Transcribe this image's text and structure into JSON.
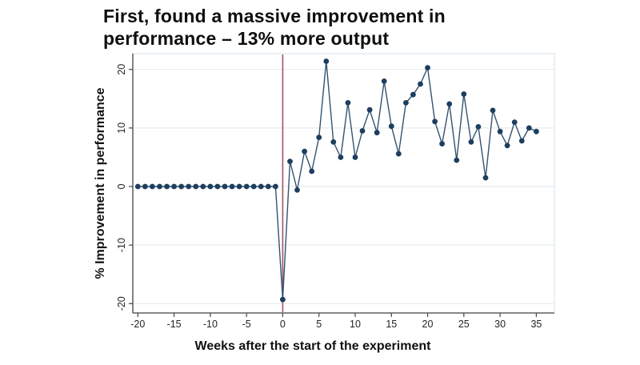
{
  "slide": {
    "title": "First, found a massive improvement in\nperformance – 13% more output"
  },
  "chart_data": {
    "type": "line",
    "title": "First, found a massive improvement in performance – 13% more output",
    "xlabel": "Weeks after the start of the experiment",
    "ylabel": "% Improvement in performance",
    "x_ticks": [
      -20,
      -15,
      -10,
      -5,
      0,
      5,
      10,
      15,
      20,
      25,
      30,
      35
    ],
    "y_ticks": [
      -20,
      -10,
      0,
      10,
      20
    ],
    "xlim": [
      -20.7,
      37.5
    ],
    "ylim": [
      -21.6,
      22.7
    ],
    "grid": "horizontal",
    "legend": "none",
    "reference_line_x": 0,
    "colors": {
      "series": "#1d3e5f",
      "series_line": "#35536f",
      "reference_line": "#a35468",
      "grid": "#e3ebf1",
      "plot_border": "#dde7ee",
      "axis": "#454545",
      "tick_text": "#232323"
    },
    "series": [
      {
        "name": "% improvement in performance",
        "x": [
          -20,
          -19,
          -18,
          -17,
          -16,
          -15,
          -14,
          -13,
          -12,
          -11,
          -10,
          -9,
          -8,
          -7,
          -6,
          -5,
          -4,
          -3,
          -2,
          -1,
          0,
          1,
          2,
          3,
          4,
          5,
          6,
          7,
          8,
          9,
          10,
          11,
          12,
          13,
          14,
          15,
          16,
          17,
          18,
          19,
          20,
          21,
          22,
          23,
          24,
          25,
          26,
          27,
          28,
          29,
          30,
          31,
          32,
          33,
          34,
          35
        ],
        "y": [
          0,
          0,
          0,
          0,
          0,
          0,
          0,
          0,
          0,
          0,
          0,
          0,
          0,
          0,
          0,
          0,
          0,
          0,
          0,
          0,
          -19.3,
          4.3,
          -0.6,
          6,
          2.6,
          8.4,
          21.4,
          7.6,
          5,
          14.3,
          5,
          9.5,
          13.1,
          9.2,
          18,
          10.3,
          5.6,
          14.3,
          15.7,
          17.5,
          20.3,
          11.1,
          7.3,
          14.1,
          4.5,
          15.8,
          7.6,
          10.2,
          1.5,
          13,
          9.4,
          7,
          11,
          7.8,
          10,
          9.4
        ]
      }
    ]
  }
}
